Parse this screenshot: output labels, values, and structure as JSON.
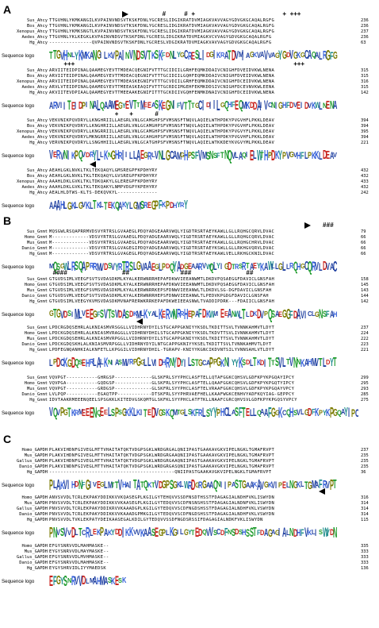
{
  "labels": {
    "sequence_logo": "Sequence logo"
  },
  "panels": [
    {
      "label": "A",
      "blocks": [
        {
          "rows": [
            {
              "name": "Sus_Ahcy",
              "seq": "TTGVHNLYKMKANGILKVPAINVNDSVTKSKFDNLYGCRESLIDGIKRATDVMIAGKVAVVAGYGDVGKGCAQALRGFG",
              "end": "236"
            },
            {
              "name": "Bos_Ahcy",
              "seq": "TTGVHNLYKMKANGILKVPAINVNDSVTKSKFDNLYGCRESLIDGIKRATDVMIAGKVAVVAGYGDVGKGCAQALRGFG",
              "end": "236"
            },
            {
              "name": "Xenopus_Ahcy",
              "seq": "TTGVHNLYKMKSNGTLKVPAINVNDSVTKSKFDNLYGCRESLIDGIKRATDVMIAGKVAVVAGYGDVGKGCAQALRGFG",
              "end": "237"
            },
            {
              "name": "Aedes_Ahcy",
              "seq": "TTGVHNLYKLKEGKLKVPAINVNDSVTKSKFDNLYGCRESLIDGIKRATDVMIAGKVCVVAGYGDVGKGCAQALRGFG",
              "end": "236"
            },
            {
              "name": "Hg_Ahcy",
              "seq": "---------------QVPAINVNDSVTKSKFDNLYGCRESLVDGIKRATDVMIAGKVAVVAGYGDVGKGCAQALRGFG",
              "end": "63"
            }
          ],
          "logo": "TTGVHNLYKMKANGILKVPAINVNDSVTKSKFDNLYGCRESLIDGIKRATDVMIAGKVAVVAGYGDVGKGCAQALRGFG",
          "marks": [
            {
              "sym": "right",
              "pos": 20
            },
            {
              "sym": "#",
              "pos": 31
            },
            {
              "sym": "#",
              "pos": 37
            },
            {
              "sym": "+",
              "pos": 39
            },
            {
              "sym": "+",
              "pos": 64
            },
            {
              "sym": "+",
              "pos": 66
            },
            {
              "sym": "+",
              "pos": 67
            },
            {
              "sym": "+",
              "pos": 68
            }
          ]
        },
        {
          "rows": [
            {
              "name": "Sus_Ahcy",
              "seq": "ARVIITEIDPINALQAAMEGYEVTTMDEACQEGNIFVTTTGCIDIILGRHFEQMKDDAIVCNIGHFDVEIDVKWLNENA",
              "end": "315"
            },
            {
              "name": "Bos_Ahcy",
              "seq": "ARVIITEIDPINALQAAMEGYEVTTMDEACQEGNIFVTTTGCIDIILGQHFEQMKDDAIVCNIGHFDVEIDVKWLNENA",
              "end": "315"
            },
            {
              "name": "Xenopus_Ahcy",
              "seq": "ARVIITEIDPINALQAAMEGYEVTTMDEASKEGNIFVTTTGCVDIILGRHFEQMKDDAIVCNIGHFDCEIDVKWLNENA",
              "end": "316"
            },
            {
              "name": "Aedes_Ahcy",
              "seq": "ARVLVTEIDPINALQAAMEGYEVTTMEEASKEAQIFVTTTGCRDIIMGEHFEKMKDDSIVCNIGHFDCEVNVKWLEENA",
              "end": "315"
            },
            {
              "name": "Hg_Ahcy",
              "seq": "AKVIITEVDPIAALQAAMEGYEVTTMEEAAKEGNIFITTTGCKDIIVGQHFENMKDNAIVCNIGHFDCEIDVKWLNENA",
              "end": "142"
            }
          ],
          "logo": "ARVIITEIDPINALQAAMEGYEVTTMEEASKEGNIFVTTTGCIDIILGQHFEQMKDDAIVCNIGHFDVEIDVKWLNENA",
          "marks": [
            {
              "sym": "+",
              "pos": 4
            },
            {
              "sym": "+",
              "pos": 5
            },
            {
              "sym": "+",
              "pos": 6
            },
            {
              "sym": "+",
              "pos": 67
            },
            {
              "sym": "+",
              "pos": 68
            },
            {
              "sym": "+",
              "pos": 69
            }
          ]
        },
        {
          "rows": [
            {
              "name": "Sus_Ahcy",
              "seq": "VEKVNIKPQVDRYLLKNGHRIILLAEGRLVNLGCAMGHPSFVMSNSFTNQVLAQIELWTHPDKYPVGVHFLPKKLDEAV",
              "end": "394"
            },
            {
              "name": "Bos_Ahcy",
              "seq": "VEKVNIKPQVDRYLLKNGHRIILLAEGRLVNLGCAMGHPSFVMSNSFTNQVLAQIELWTHPDKYPVGVHFLPKKLDEAV",
              "end": "394"
            },
            {
              "name": "Xenopus_Ahcy",
              "seq": "VEKVNIKPQVDRYLLKNGRRIILLAEGRLVNLGCAMGHPSFVMSNSFTNQVLAQIELWTHPDKYPVGVYFLPKKLDEAV",
              "end": "395"
            },
            {
              "name": "Aedes_Ahcy",
              "seq": "VEKVNIKPQVDRYLMKNGRRIILLAEGRLVNLGCAHGHPSFVMSNSFTNQVLAQIELWTHPDKYPVGVHFLPKKLDEAV",
              "end": "394"
            },
            {
              "name": "Hg_Ahcy",
              "seq": "VERVNIKPQVDRYLLSNGHHIILLAEGRLVNLGCATGHPSFVMSNSFTNQVLAQIELWTKKDEYKVGVYMLPKKLDEAV",
              "end": "221"
            }
          ],
          "logo": "VERVNIKPQVDRYLLKNGHRIILLAEGRLVNLGCAMGHPSFVMSNSFTNQVLAQIELWTHPDKYPVGVHFLPKKLDEAV",
          "marks": [
            {
              "sym": "+",
              "pos": 18
            },
            {
              "sym": "+",
              "pos": 22
            },
            {
              "sym": "#",
              "pos": 29
            }
          ]
        },
        {
          "rows": [
            {
              "name": "Sus_Ahcy",
              "seq": "AEAHLGKLNVKLTKLTEKQAQYLGMSREGPFKPDHYRY",
              "end": "432"
            },
            {
              "name": "Bos_Ahcy",
              "seq": "AEAHLGKLNVKLTKLTEKQAQYLGVSREGPFKPDHYRY",
              "end": "432"
            },
            {
              "name": "Xenopus_Ahcy",
              "seq": "AAAHLDKLGVKLTKLTDKQAKYLGLEREGPFKPDHYRY",
              "end": "433"
            },
            {
              "name": "Aedes_Ahcy",
              "seq": "AAAHLDKLGVKLTKLTEKQAKYLNMPVDGPYKPEHYRY",
              "end": "432"
            },
            {
              "name": "Hg_Ahcy",
              "seq": "AEALHLDTWS-KLTS-DEKQVKYL--------------",
              "end": "242"
            }
          ],
          "logo": "AAAHLGKLGVKLTKLTEKQAKYLGMSREGPFKPDHYRY",
          "marks": [
            {
              "sym": "left",
              "pos": 11
            }
          ]
        }
      ]
    },
    {
      "label": "B",
      "blocks": [
        {
          "rows": [
            {
              "name": "Sus_Gnmt",
              "seq": "MQSGWLRSQAPRRMVDSVYRTRSLGVAAEGLPDQYADGEAARVWQLYIGDTRSRTAEYKAWLLGLLRQHGCQRVLDVAC",
              "end": "79"
            },
            {
              "name": "Homo_Gnmt",
              "seq": "M-------------VDSVYRTRSLGVAAEGLPDQYADGEAARVWQLYIGDTRSRTAEYKAWLLGLLRQHGCQRVLDVAC",
              "end": "66"
            },
            {
              "name": "Mus_Gnmt",
              "seq": "M-------------VDSVYRTRSLGVAAEGLPDQYADGEAARVWQLYIGDTRSRTAEYKAWLLGLLRQHGCHRVLDVAC",
              "end": "66"
            },
            {
              "name": "Danio_Gnmt",
              "seq": "M-------------VDSVYRTRSLGVAGEGIPDQYADGEAARVWQLYIGDTRSRTAEYKSWLLGLLRKHGVQRVLDVAC",
              "end": "66"
            },
            {
              "name": "Hg_Gnmt",
              "seq": "M-------------VDSVYRTRSLGVAGEGLPDQYADGEAARVWQLYIGDTRSRTAEYKAWLVELLRKHGCKNILDVAC",
              "end": "66"
            }
          ],
          "logo": "MQSGWLRSQAPRRMVDSVYRTRSLGVAAEGLPDQYADGEAARVWQLYIGDTRSRTAEYKAWLLGLLRQHGCQRVLDVAC",
          "marks": [
            {
              "sym": "right",
              "pos": 70
            },
            {
              "sym": "#",
              "pos": 75
            },
            {
              "sym": "#",
              "pos": 76
            },
            {
              "sym": "#",
              "pos": 77
            }
          ]
        },
        {
          "rows": [
            {
              "name": "Sus_Gnmt",
              "seq": "GTGVDSIMLVEEGFSVTSVDASDKMLKYALKERWNRRHEPAFDKWVIEEANWMTLDKDVPQSAEGGFDAVICLGNSFAH",
              "end": "158"
            },
            {
              "name": "Homo_Gnmt",
              "seq": "GTGVDSIMLVEEGFSVTSVDASDKMLKYALKERWNRRHEPAFDKWVIEEANWMTLDKDVPQSAEGGFDAVICLGNSFAH",
              "end": "145"
            },
            {
              "name": "Mus_Gnmt",
              "seq": "GTGVDSIMLVEEGFSVMSVDASDKMLKYALKERWNRRKEPSFDNWVIEEANWLTLDKDVLSG-DGFDAVICLGNSFAH",
              "end": "143"
            },
            {
              "name": "Danio_Gnmt",
              "seq": "GTGVDSVMLVEEGFSVTSVDASDKMLKYALKERWNRRHEPSFDNWVIEEANWLTLPEDVKPGDGFDAVICLGNSFAH",
              "end": "144"
            },
            {
              "name": "Hg_Gnmt",
              "seq": "GTGVDSIMLVEEGYKVMSVDASDKMVNAFRERWKRRKEPAFDKWEIEEASNWLTVADDIPDRK---FDAIICLGNSFAH",
              "end": "142"
            }
          ],
          "logo": "GTGVDSIMLVEEGFSVTSVDASDKMLKYALKERWNRRHEPAFDKWVIEEANWLTLDKDVPQSAEGGFDAVICLGNSFAH",
          "marks": [
            {
              "sym": "#",
              "pos": 1
            },
            {
              "sym": "#",
              "pos": 2
            },
            {
              "sym": "#",
              "pos": 3
            },
            {
              "sym": "#",
              "pos": 4
            },
            {
              "sym": "#",
              "pos": 20
            },
            {
              "sym": "#",
              "pos": 21
            },
            {
              "sym": "#",
              "pos": 36
            },
            {
              "sym": "#",
              "pos": 37
            },
            {
              "sym": "#",
              "pos": 38
            },
            {
              "sym": "#",
              "pos": 54
            },
            {
              "sym": "#",
              "pos": 55
            }
          ]
        },
        {
          "rows": [
            {
              "name": "Sus_Gnmt",
              "seq": "LPDCRGDQSEHRLALKNIASMVRSGGLLVIDHRNYDYILSTGCAPPGKNIYYKSDLTKDITTSVLTVNNKAHMVTLDYT",
              "end": "237"
            },
            {
              "name": "Homo_Gnmt",
              "seq": "LPDCKGDQSEHRLALKNIASMVRAGGLLVIDHRNYDHILSTGCAPPGKNIYYKSDLTKDVTTSVLIVNNKAHMVTLDYT",
              "end": "224"
            },
            {
              "name": "Mus_Gnmt",
              "seq": "LPDCKGDQSEHRLALKNIASMVRPGGLLVIDHRNYDYILSTGCAPPGKNIYYKSDLTKDITTSVLTVNNKAHMVTLDYT",
              "end": "222"
            },
            {
              "name": "Danio_Gnmt",
              "seq": "LPDCKGDQSKHLALKNIASMVRPGGLLVIDHRNYDYILNTGCAPPGKNIYYKSELTKDITTSVLTVNNKAHMVTLDYT",
              "end": "223"
            },
            {
              "name": "Hg_Gnmt",
              "seq": "LPDFEGNQANHKIALKNFETLLKPGGILVIDHRNYDHIL-TGRAPV-KNIYYKGNCIKDVNTSILYVNNSAHLVTLDYT",
              "end": "221"
            }
          ],
          "logo": "LPDCKGDQSEHRLALKNIASMVRPGGLLVIDHRNYDYILSTGCAPPGKNIYYKSDLTKDITTSVLTVNNKAHMVTLDYT",
          "marks": [
            {
              "sym": "left",
              "pos": 24
            }
          ]
        },
        {
          "rows": [
            {
              "name": "Sus_Gnmt",
              "seq": "VQVPGT-----------GHRGSP-------------GLSKFRLSYYPHCLASFTELLQTAFGGKCQHSVLGDFKPYKPGQAYIPCY",
              "end": "299"
            },
            {
              "name": "Homo_Gnmt",
              "seq": "VQVPGA-----------GQDGSP-------------GLSKFRLSYYPHCLASFTELLQAAFGGKCQHSVLGDFKPYKPGQTYIPCY",
              "end": "295"
            },
            {
              "name": "Mus_Gnmt",
              "seq": "VQVPGT-----------GRDGSP-------------GLSKFRLSYYPHCLASFTELVRAAFGGKCQHSVLGDFKPYKPGQAYVPCY",
              "end": "293"
            },
            {
              "name": "Danio_Gnmt",
              "seq": "LVLPQP-----------EGAQTPP------------DTSKFRLSYYPHRVAEFHELLKAAFWGKCENHVYADFKQYIAG-GEPPCY",
              "end": "285"
            },
            {
              "name": "Hg_Gnmt",
              "seq": "IDVTAAKRMEEENQEELSPSGKKLKITEDVGSKQMTGLSKFKLSYYPHCLATFTKLLNAAFCGRCQHVSVLGDFKPYKPGQSYVPCY",
              "end": "275"
            }
          ],
          "logo": "VQVPGTKRMEEENQEELSPSGKKLKITEDVGSKQMTGLSKFRLSYYPHCLASFTELLQAAFGGKCQHSVLGDFKPYKPGQAYIPCY",
          "marks": []
        }
      ]
    },
    {
      "label": "C",
      "blocks": [
        {
          "rows": [
            {
              "name": "Homo_GAPDH",
              "seq": "PLAKVIHDNFGIVEGLMTTVHAITATQKTVDGPSGKLWRDGRGALQNIIPASTGAAKAVGKVIPELNGKLTGMAFRVPT",
              "end": "237"
            },
            {
              "name": "Mus_GAPDH",
              "seq": "PLAKVIHDNFGIVEGLMTTVHAITATQKTVDGPSGKLWRDGRGAAQNIIPASTGAAKAVGKVIPELNGKLTGMAFRVPT",
              "end": "235"
            },
            {
              "name": "Gallus_GAPDH",
              "seq": "PLAKVIHDNFGIVEGLMTTVHAITATQKTVDGPSGKLWRDGRGAAQNIIPASTGAAKAVGKVIPELNGKLTGMAFRVPT",
              "end": "235"
            },
            {
              "name": "Danio_GAPDH",
              "seq": "PLAKVINDNFGIVEGLMTTVHAITATQKTVDGPSGKLWRDGRGASQNIIPASTGAAKAVGKVIPELNGKLTGMAFRVPT",
              "end": "235"
            },
            {
              "name": "Hg_GAPDH",
              "seq": "--------------------------------------------QNIIPASTGAAKAVGKVIPELNGKLTGMAFRVPT",
              "end": "36"
            }
          ],
          "logo": "PLAKVIHDNFGIVEGLMTTVHAITATQKTVDGPSGKLWRDGRGAAQNIIPASTGAAKAVGKVIPELNGKLTGMAFRVPT",
          "marks": []
        },
        {
          "rows": [
            {
              "name": "Homo_GAPDH",
              "seq": "ANVSVVDLTCRLEKPAKYDDIKKVVKQASEGPLKGILGYTEHQVVSSDFNSDTHSSTFDAGAGIALNDHFVKLISWYDN",
              "end": "316"
            },
            {
              "name": "Mus_GAPDH",
              "seq": "PNVSVVDLTCRLEKPAKYDDIKKVVKAASEGPLKGILGYTEDQVVSCDFNSNSHSSTFDAGAGIALNDNFVKLISWYDN",
              "end": "314"
            },
            {
              "name": "Gallus_GAPDH",
              "seq": "PNVSVVDLTCRLEKPAKYDDIKRVVKAAADGPLKGILGYTEDQVVSCDFNGDSHSSTFDAGAGIALNDHFVKLVSWYDN",
              "end": "314"
            },
            {
              "name": "Danio_GAPDH",
              "seq": "PNVSVVDLTCRLEKPAKYDDIKKVVKAAADGPMKGILGYTEDQVVSCDFNGDSHSSTFDAGAGIALNDHFVKLVSWYDN",
              "end": "314"
            },
            {
              "name": "Hg_GAPDH",
              "seq": "PNVSVVDLTVKLEKPATYDEIKAASEGALKDILGYTEDQVVSSDFNGDSRSSIFDAGAGIALNDKFVKLISWYDN",
              "end": "115"
            }
          ],
          "logo": "PNVSVVDLTCRLEKPAKYDDIKKVVKAASEGPLKGILGYTEDQVVSCDFNSDSHSSTFDAGAGIALNDHFVKLISWYDN",
          "marks": [
            {
              "sym": "left",
              "pos": 74
            }
          ]
        },
        {
          "rows": [
            {
              "name": "Homo_GAPDH",
              "seq": "EFGYSNRVVDLMAHMASKE--",
              "end": "335"
            },
            {
              "name": "Mus_GAPDH",
              "seq": "EYGYSNRVVDLMAYMASKE--",
              "end": "333"
            },
            {
              "name": "Gallus_GAPDH",
              "seq": "EFGYSNRVVDLMVHMASKE--",
              "end": "333"
            },
            {
              "name": "Danio_GAPDH",
              "seq": "EFGYSNRVVDLMAHMASKE--",
              "end": "333"
            },
            {
              "name": "Hg_GAPDH",
              "seq": "EYGYSHRVIDLIYYMAEDSK",
              "end": "136"
            }
          ],
          "logo": "EFGYSNRVVDLMAHMASKESK",
          "marks": []
        }
      ]
    }
  ]
}
